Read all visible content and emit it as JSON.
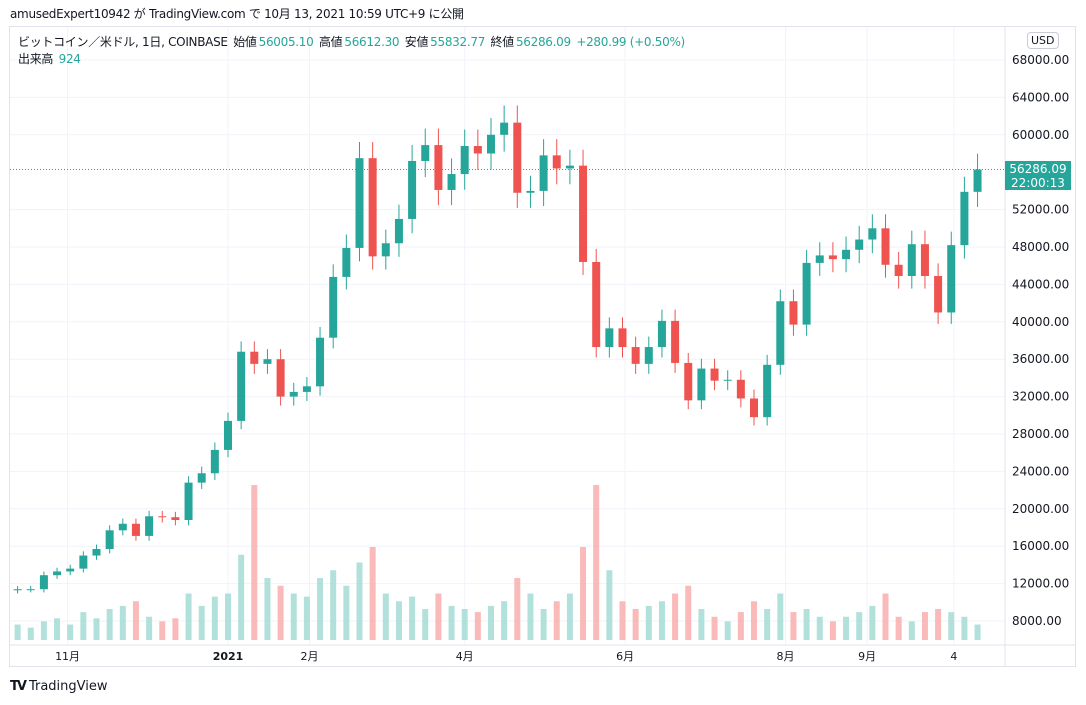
{
  "header": {
    "publish_line": "amusedExpert10942 が TradingView.com で 10月 13, 2021 10:59 UTC+9 に公開"
  },
  "legend": {
    "symbol": "ビットコイン／米ドル, 1日, COINBASE",
    "open_label": "始値",
    "open": "56005.10",
    "high_label": "高値",
    "high": "56612.30",
    "low_label": "安値",
    "low": "55832.77",
    "close_label": "終値",
    "close": "56286.09",
    "change": "+280.99 (+0.50%)",
    "volume_label": "出来高",
    "volume": "924"
  },
  "currency_button": "USD",
  "last_price": {
    "price": "56286.09",
    "countdown": "22:00:13"
  },
  "footer": {
    "brand": "TradingView"
  },
  "colors": {
    "up": "#26a69a",
    "down": "#ef5350",
    "up_volume": "#9fd9d3",
    "down_volume": "#f7a9a7",
    "grid": "#f0f3fa"
  },
  "chart_data": {
    "type": "candlestick",
    "interval": "1D (shown aggregated, approximate)",
    "ylim": [
      6000,
      70000
    ],
    "y_ticks": [
      "68000.00",
      "64000.00",
      "60000.00",
      "52000.00",
      "48000.00",
      "44000.00",
      "40000.00",
      "36000.00",
      "32000.00",
      "28000.00",
      "24000.00",
      "20000.00",
      "16000.00",
      "12000.00",
      "8000.00"
    ],
    "x_ticks": [
      {
        "label": "11月",
        "date": "2020-11-01"
      },
      {
        "label": "2021",
        "date": "2021-01-01"
      },
      {
        "label": "2月",
        "date": "2021-02-01"
      },
      {
        "label": "4月",
        "date": "2021-04-01"
      },
      {
        "label": "6月",
        "date": "2021-06-01"
      },
      {
        "label": "8月",
        "date": "2021-08-01"
      },
      {
        "label": "9月",
        "date": "2021-09-01"
      },
      {
        "label": "4",
        "date": "2021-10-04"
      }
    ],
    "grid": true,
    "last_price_line": 56286.09,
    "dates": [
      "2020-10-13",
      "2020-10-18",
      "2020-10-23",
      "2020-10-28",
      "2020-11-02",
      "2020-11-07",
      "2020-11-12",
      "2020-11-17",
      "2020-11-22",
      "2020-11-27",
      "2020-12-02",
      "2020-12-07",
      "2020-12-12",
      "2020-12-17",
      "2020-12-22",
      "2020-12-27",
      "2021-01-01",
      "2021-01-06",
      "2021-01-11",
      "2021-01-16",
      "2021-01-21",
      "2021-01-26",
      "2021-01-31",
      "2021-02-05",
      "2021-02-10",
      "2021-02-15",
      "2021-02-20",
      "2021-02-25",
      "2021-03-02",
      "2021-03-07",
      "2021-03-12",
      "2021-03-17",
      "2021-03-22",
      "2021-03-27",
      "2021-04-01",
      "2021-04-06",
      "2021-04-11",
      "2021-04-16",
      "2021-04-21",
      "2021-04-26",
      "2021-05-01",
      "2021-05-06",
      "2021-05-11",
      "2021-05-16",
      "2021-05-21",
      "2021-05-26",
      "2021-05-31",
      "2021-06-05",
      "2021-06-10",
      "2021-06-15",
      "2021-06-20",
      "2021-06-25",
      "2021-06-30",
      "2021-07-05",
      "2021-07-10",
      "2021-07-15",
      "2021-07-20",
      "2021-07-25",
      "2021-07-30",
      "2021-08-04",
      "2021-08-09",
      "2021-08-14",
      "2021-08-19",
      "2021-08-24",
      "2021-08-29",
      "2021-09-03",
      "2021-09-08",
      "2021-09-13",
      "2021-09-18",
      "2021-09-23",
      "2021-09-28",
      "2021-10-03",
      "2021-10-08",
      "2021-10-13"
    ],
    "close": [
      11400,
      11400,
      12900,
      13300,
      13600,
      15000,
      15700,
      17700,
      18400,
      17100,
      19200,
      19100,
      18800,
      22800,
      23800,
      26300,
      29400,
      36800,
      35500,
      36000,
      32000,
      32500,
      33100,
      38300,
      44800,
      47900,
      57500,
      47000,
      48400,
      51000,
      57200,
      58900,
      54100,
      55800,
      58800,
      58000,
      60000,
      61300,
      53800,
      54000,
      57800,
      56400,
      56700,
      46400,
      37300,
      39300,
      37300,
      35500,
      37300,
      40100,
      35600,
      31600,
      35000,
      33700,
      33800,
      31800,
      29800,
      35400,
      42200,
      39700,
      46300,
      47100,
      46700,
      47700,
      48800,
      50000,
      46100,
      44900,
      48300,
      44900,
      41000,
      48200,
      53900,
      56286.09
    ],
    "relative_volume": [
      10,
      8,
      12,
      14,
      10,
      18,
      14,
      20,
      22,
      25,
      15,
      12,
      14,
      30,
      22,
      28,
      30,
      55,
      100,
      40,
      35,
      30,
      28,
      40,
      45,
      35,
      50,
      60,
      30,
      25,
      28,
      20,
      30,
      22,
      20,
      18,
      22,
      25,
      40,
      30,
      20,
      25,
      30,
      60,
      100,
      45,
      25,
      20,
      22,
      25,
      30,
      35,
      20,
      15,
      12,
      18,
      25,
      20,
      30,
      18,
      20,
      15,
      12,
      15,
      18,
      22,
      30,
      15,
      12,
      18,
      20,
      18,
      15,
      10
    ]
  }
}
